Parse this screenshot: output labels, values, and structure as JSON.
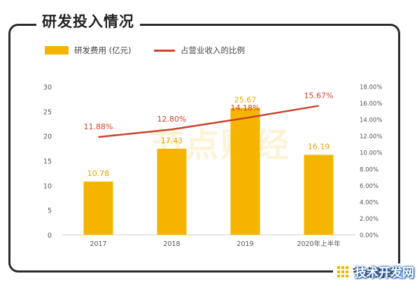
{
  "title": "研发投入情况",
  "legend": {
    "bar_label": "研发费用 (亿元)",
    "line_label": "占营业收入的比例"
  },
  "brand": "节点财经",
  "chart_watermark": "节点财经",
  "corner_watermark": "技术开发网",
  "colors": {
    "bar": "#f5b400",
    "line": "#c9442b",
    "line_label": "#c9442b"
  },
  "chart_data": {
    "type": "bar",
    "categories": [
      "2017",
      "2018",
      "2019",
      "2020年上半年"
    ],
    "series": [
      {
        "name": "研发费用 (亿元)",
        "type": "bar",
        "axis": "left",
        "values": [
          10.78,
          17.43,
          25.67,
          16.19
        ],
        "labels": [
          "10.78",
          "17.43",
          "25.67",
          "16.19"
        ]
      },
      {
        "name": "占营业收入的比例",
        "type": "line",
        "axis": "right",
        "values": [
          11.88,
          12.8,
          14.18,
          15.67
        ],
        "labels": [
          "11.88%",
          "12.80%",
          "14.18%",
          "15.67%"
        ]
      }
    ],
    "left_axis": {
      "ylim": [
        0,
        30
      ],
      "ticks": [
        "0",
        "5",
        "10",
        "15",
        "20",
        "25",
        "30"
      ]
    },
    "right_axis": {
      "ylim": [
        0,
        18
      ],
      "ticks": [
        "0.00%",
        "2.00%",
        "4.00%",
        "6.00%",
        "8.00%",
        "10.00%",
        "12.00%",
        "14.00%",
        "16.00%",
        "18.00%"
      ]
    },
    "grid": false,
    "legend_position": "top-left"
  }
}
